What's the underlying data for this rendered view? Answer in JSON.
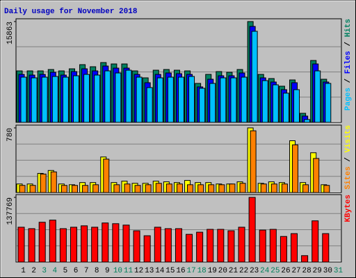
{
  "title": "Daily usage for November 2018",
  "chart_data": [
    {
      "type": "bar",
      "ylim": [
        0,
        15863
      ],
      "yticks": [
        15863
      ],
      "grid": true,
      "legend_separator": " / ",
      "series": [
        {
          "name": "Hits",
          "color": "#008060",
          "values": [
            8096,
            8096,
            8096,
            8314,
            8096,
            8424,
            9080,
            8752,
            9408,
            9190,
            9190,
            8096,
            7002,
            8205,
            8314,
            8205,
            8096,
            6126,
            7549,
            7986,
            7877,
            8314,
            15863,
            7549,
            6892,
            5689,
            6673,
            1422,
            9737,
            6783,
            0
          ]
        },
        {
          "name": "Files",
          "color": "#0000ff",
          "values": [
            7549,
            7439,
            7549,
            7877,
            7439,
            7986,
            8424,
            8096,
            8861,
            8533,
            8533,
            7549,
            6236,
            7549,
            7768,
            7658,
            7549,
            5579,
            6783,
            7330,
            7330,
            7768,
            15097,
            7002,
            6345,
            5142,
            6236,
            985,
            9190,
            6345,
            0
          ]
        },
        {
          "name": "Pages",
          "color": "#00c0ff",
          "values": [
            7111,
            7002,
            7111,
            7220,
            7111,
            7330,
            7549,
            7439,
            8096,
            7768,
            8205,
            7111,
            5470,
            7002,
            7111,
            7111,
            7220,
            5361,
            6126,
            7002,
            7002,
            7111,
            14331,
            6564,
            5908,
            4595,
            5142,
            438,
            8096,
            6126,
            0
          ]
        }
      ]
    },
    {
      "type": "bar",
      "ylim": [
        0,
        780
      ],
      "yticks": [
        780
      ],
      "grid": true,
      "legend_separator": " / ",
      "series": [
        {
          "name": "Visits",
          "color": "#ffff00",
          "values": [
            103,
            103,
            231,
            266,
            103,
            94,
            120,
            120,
            429,
            120,
            137,
            111,
            111,
            137,
            129,
            120,
            146,
            120,
            120,
            103,
            103,
            129,
            780,
            111,
            129,
            120,
            625,
            120,
            480,
            94,
            0
          ]
        },
        {
          "name": "Sites",
          "color": "#ff8000",
          "values": [
            86,
            86,
            223,
            249,
            86,
            86,
            86,
            94,
            403,
            94,
            103,
            86,
            94,
            111,
            103,
            103,
            94,
            94,
            94,
            94,
            103,
            111,
            745,
            103,
            103,
            103,
            575,
            94,
            411,
            86,
            0
          ]
        }
      ]
    },
    {
      "type": "bar",
      "ylim": [
        0,
        137769
      ],
      "yticks": [
        137769
      ],
      "grid": true,
      "categories": [
        "1",
        "2",
        "3",
        "4",
        "5",
        "6",
        "7",
        "8",
        "9",
        "10",
        "11",
        "12",
        "13",
        "14",
        "15",
        "16",
        "17",
        "18",
        "19",
        "20",
        "21",
        "22",
        "23",
        "24",
        "25",
        "26",
        "27",
        "28",
        "29",
        "30",
        "31"
      ],
      "category_colors": [
        "#000000",
        "#000000",
        "#00805c",
        "#00805c",
        "#000000",
        "#000000",
        "#000000",
        "#000000",
        "#000000",
        "#00805c",
        "#00805c",
        "#000000",
        "#000000",
        "#000000",
        "#000000",
        "#000000",
        "#00805c",
        "#00805c",
        "#000000",
        "#000000",
        "#000000",
        "#000000",
        "#000000",
        "#00805c",
        "#00805c",
        "#000000",
        "#000000",
        "#000000",
        "#000000",
        "#000000",
        "#00805c"
      ],
      "series": [
        {
          "name": "KBytes",
          "color": "#ff0000",
          "values": [
            74186,
            71158,
            84784,
            89326,
            71158,
            74186,
            77214,
            74186,
            83270,
            81756,
            78728,
            66616,
            56018,
            74186,
            71158,
            71158,
            59046,
            63588,
            69644,
            69644,
            66616,
            74186,
            137769,
            68130,
            69644,
            54504,
            60560,
            13626,
            87812,
            60560,
            0
          ]
        }
      ]
    }
  ]
}
